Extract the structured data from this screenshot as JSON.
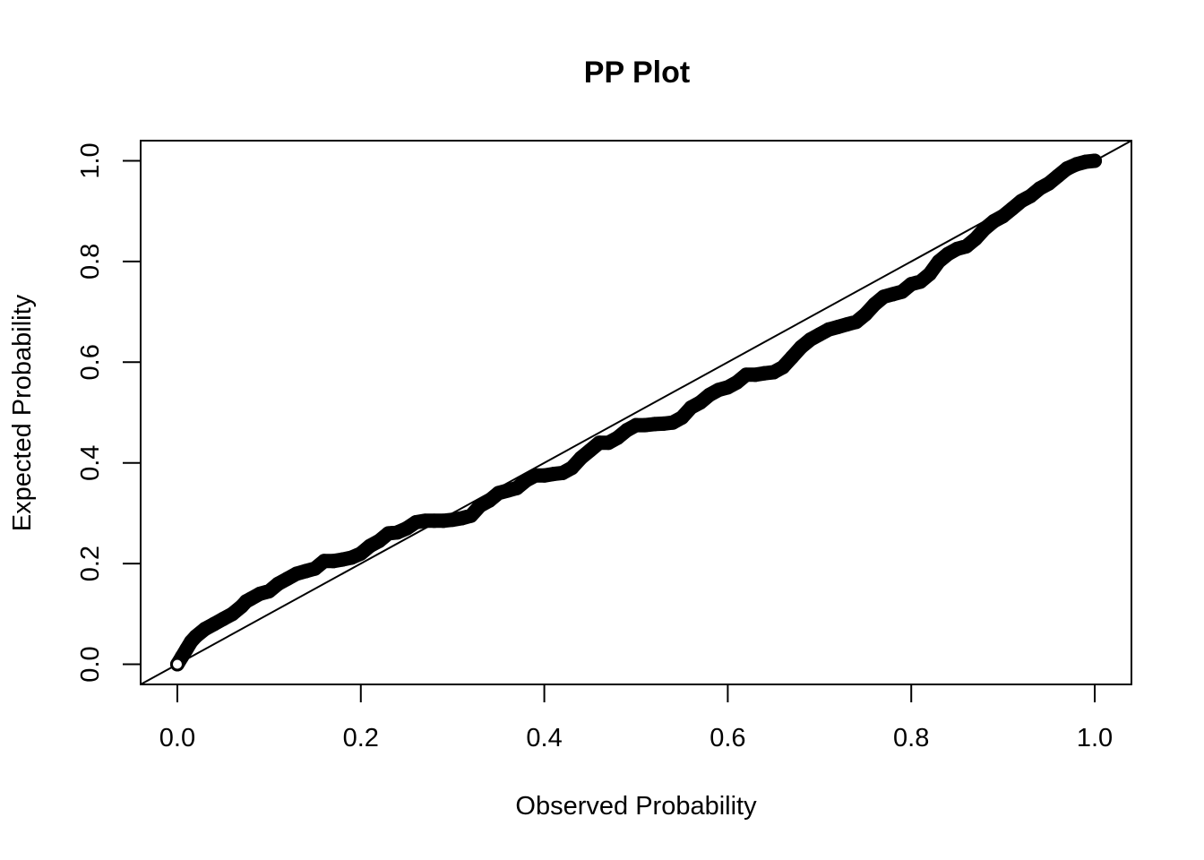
{
  "chart_data": {
    "type": "scatter",
    "title": "PP Plot",
    "xlabel": "Observed Probability",
    "ylabel": "Expected Probability",
    "xlim": [
      -0.04,
      1.04
    ],
    "ylim": [
      -0.04,
      1.04
    ],
    "x_ticks": [
      0.0,
      0.2,
      0.4,
      0.6,
      0.8,
      1.0
    ],
    "x_tick_labels": [
      "0.0",
      "0.2",
      "0.4",
      "0.6",
      "0.8",
      "1.0"
    ],
    "y_ticks": [
      0.0,
      0.2,
      0.4,
      0.6,
      0.8,
      1.0
    ],
    "y_tick_labels": [
      "0.0",
      "0.2",
      "0.4",
      "0.6",
      "0.8",
      "1.0"
    ],
    "grid": false,
    "legend": "none",
    "reference_line": {
      "from": [
        0,
        0
      ],
      "to": [
        1,
        1
      ]
    },
    "point_color": "#000000",
    "line_color": "#000000",
    "points_x": [
      0.0,
      0.005,
      0.01,
      0.015,
      0.02,
      0.03,
      0.04,
      0.05,
      0.06,
      0.07,
      0.075,
      0.08,
      0.09,
      0.1,
      0.11,
      0.12,
      0.13,
      0.14,
      0.15,
      0.16,
      0.17,
      0.18,
      0.19,
      0.2,
      0.21,
      0.22,
      0.23,
      0.24,
      0.25,
      0.26,
      0.27,
      0.28,
      0.29,
      0.3,
      0.31,
      0.32,
      0.33,
      0.34,
      0.35,
      0.36,
      0.37,
      0.38,
      0.39,
      0.4,
      0.41,
      0.42,
      0.43,
      0.44,
      0.45,
      0.46,
      0.47,
      0.48,
      0.49,
      0.5,
      0.51,
      0.52,
      0.53,
      0.54,
      0.55,
      0.56,
      0.57,
      0.58,
      0.59,
      0.6,
      0.61,
      0.62,
      0.63,
      0.64,
      0.65,
      0.66,
      0.67,
      0.68,
      0.69,
      0.7,
      0.71,
      0.72,
      0.73,
      0.74,
      0.75,
      0.76,
      0.77,
      0.78,
      0.79,
      0.8,
      0.81,
      0.82,
      0.83,
      0.84,
      0.85,
      0.86,
      0.87,
      0.88,
      0.89,
      0.9,
      0.91,
      0.92,
      0.93,
      0.94,
      0.95,
      0.96,
      0.97,
      0.98,
      0.99,
      1.0
    ],
    "points_y": [
      0.0,
      0.015,
      0.03,
      0.045,
      0.055,
      0.07,
      0.08,
      0.09,
      0.1,
      0.115,
      0.125,
      0.13,
      0.14,
      0.145,
      0.16,
      0.17,
      0.18,
      0.185,
      0.19,
      0.205,
      0.205,
      0.208,
      0.212,
      0.22,
      0.235,
      0.245,
      0.26,
      0.262,
      0.27,
      0.282,
      0.285,
      0.285,
      0.285,
      0.287,
      0.29,
      0.295,
      0.315,
      0.325,
      0.34,
      0.345,
      0.35,
      0.365,
      0.375,
      0.375,
      0.378,
      0.38,
      0.39,
      0.41,
      0.425,
      0.44,
      0.44,
      0.45,
      0.465,
      0.475,
      0.475,
      0.477,
      0.478,
      0.48,
      0.49,
      0.51,
      0.52,
      0.535,
      0.545,
      0.55,
      0.56,
      0.575,
      0.575,
      0.578,
      0.58,
      0.59,
      0.61,
      0.63,
      0.645,
      0.655,
      0.665,
      0.67,
      0.675,
      0.68,
      0.695,
      0.715,
      0.73,
      0.735,
      0.74,
      0.755,
      0.76,
      0.775,
      0.8,
      0.815,
      0.825,
      0.83,
      0.845,
      0.865,
      0.88,
      0.89,
      0.905,
      0.92,
      0.93,
      0.945,
      0.955,
      0.97,
      0.985,
      0.993,
      0.998,
      1.0
    ]
  }
}
